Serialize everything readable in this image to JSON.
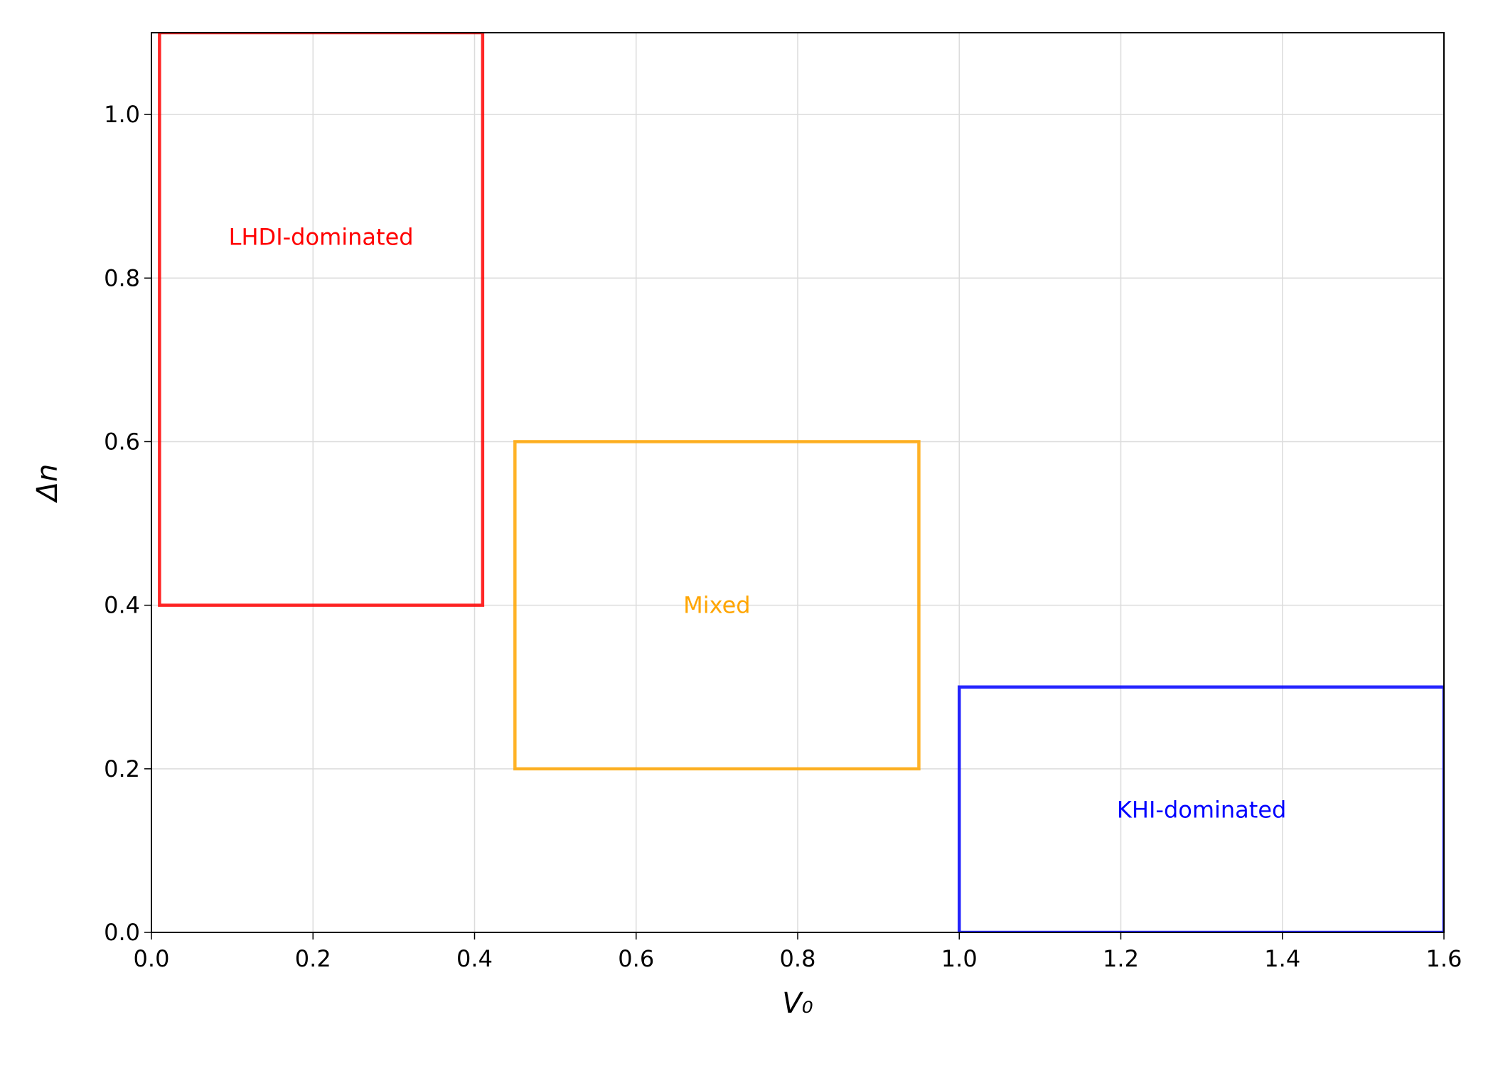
{
  "chart_data": {
    "type": "region",
    "xlabel": "V₀",
    "ylabel": "Δn",
    "xlim": [
      0,
      1.6
    ],
    "ylim": [
      0,
      1.1
    ],
    "xticks": [
      {
        "value": 0,
        "label": "0.0"
      },
      0.2,
      0.4,
      0.6,
      0.8,
      {
        "value": 1,
        "label": "1.0"
      },
      1.2,
      1.4,
      1.6
    ],
    "yticks": [
      {
        "value": 0,
        "label": "0.0"
      },
      0.2,
      0.4,
      0.6,
      0.8,
      {
        "value": 1,
        "label": "1.0"
      }
    ],
    "grid": true,
    "regions": [
      {
        "name": "LHDI-dominated",
        "color": "#ff0000",
        "x": [
          0.01,
          0.41
        ],
        "y": [
          0.4,
          1.1
        ],
        "label_xy": [
          0.21,
          0.85
        ]
      },
      {
        "name": "Mixed",
        "color": "#ffa500",
        "x": [
          0.45,
          0.95
        ],
        "y": [
          0.2,
          0.6
        ],
        "label_xy": [
          0.7,
          0.4
        ]
      },
      {
        "name": "KHI-dominated",
        "color": "#0000ff",
        "x": [
          1.0,
          1.6
        ],
        "y": [
          0,
          0.3
        ],
        "label_xy": [
          1.3,
          0.15
        ]
      }
    ]
  }
}
